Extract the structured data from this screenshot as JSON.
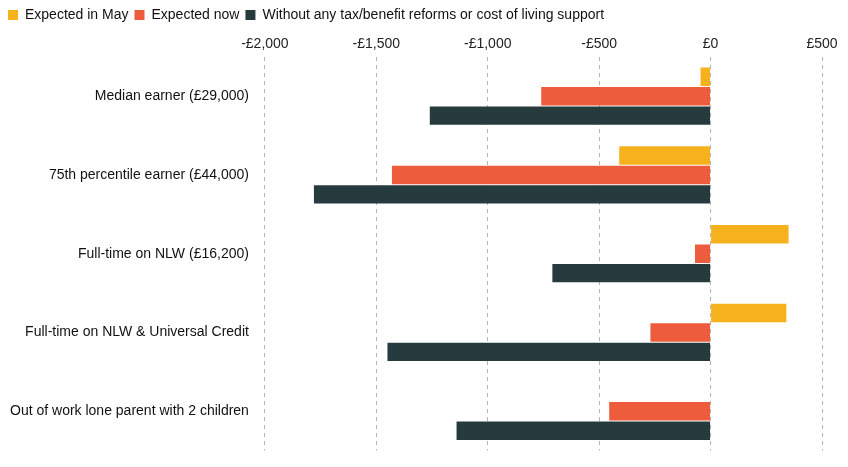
{
  "chart_data": {
    "type": "bar",
    "orientation": "horizontal",
    "categories": [
      "Median earner (£29,000)",
      "75th percentile earner (£44,000)",
      "Full-time on NLW (£16,200)",
      "Full-time on NLW & Universal Credit",
      "Out of work lone parent with 2 children"
    ],
    "series": [
      {
        "name": "Expected in May",
        "color": "#f5b21c",
        "values": [
          -45,
          -410,
          350,
          340,
          0
        ]
      },
      {
        "name": "Expected now",
        "color": "#ee5c3e",
        "values": [
          -760,
          -1430,
          -70,
          -270,
          -455
        ]
      },
      {
        "name": "Without any tax/benefit reforms or cost of living support",
        "color": "#263b3e",
        "values": [
          -1260,
          -1780,
          -710,
          -1450,
          -1140
        ]
      }
    ],
    "xlim": [
      -2000,
      500
    ],
    "xticks": [
      {
        "value": -2000,
        "label": "-£2,000"
      },
      {
        "value": -1500,
        "label": "-£1,500"
      },
      {
        "value": -1000,
        "label": "-£1,000"
      },
      {
        "value": -500,
        "label": "-£500"
      },
      {
        "value": 0,
        "label": "£0"
      },
      {
        "value": 500,
        "label": "£500"
      }
    ],
    "grid": true,
    "legend": "top-left"
  }
}
